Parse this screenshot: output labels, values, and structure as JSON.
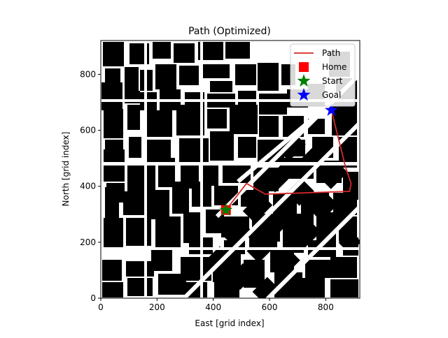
{
  "chart_data": {
    "type": "line",
    "title": "Path (Optimized)",
    "xlabel": "East [grid index]",
    "ylabel": "North [grid index]",
    "xlim": [
      0,
      921
    ],
    "ylim": [
      0,
      921
    ],
    "x_ticks": [
      0,
      200,
      400,
      600,
      800
    ],
    "y_ticks": [
      0,
      200,
      400,
      600,
      800
    ],
    "grid": false,
    "legend_position": "top-right",
    "background": "occupancy-grid map of buildings (black = obstacle, white = free)",
    "series": [
      {
        "name": "Path",
        "marker": "line",
        "color": "#d62728",
        "points": [
          [
            445,
            315
          ],
          [
            518,
            410
          ],
          [
            585,
            372
          ],
          [
            885,
            382
          ],
          [
            890,
            410
          ],
          [
            870,
            470
          ],
          [
            820,
            672
          ]
        ]
      },
      {
        "name": "Home",
        "marker": "square",
        "color": "#ff0000",
        "points": [
          [
            445,
            315
          ]
        ]
      },
      {
        "name": "Start",
        "marker": "star",
        "color": "#008000",
        "points": [
          [
            445,
            315
          ]
        ]
      },
      {
        "name": "Goal",
        "marker": "star",
        "color": "#0000ff",
        "points": [
          [
            820,
            672
          ]
        ]
      }
    ]
  }
}
